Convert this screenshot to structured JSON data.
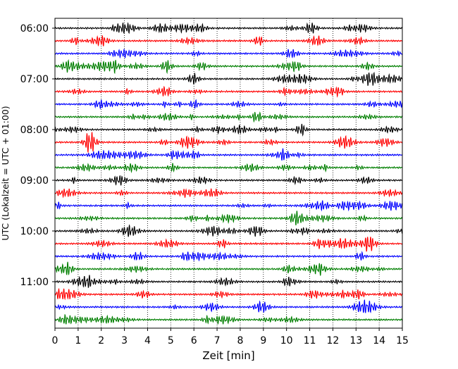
{
  "chart_data": {
    "type": "line",
    "title": "",
    "xlabel": "Zeit  [min]",
    "ylabel": "UTC (Lokalzeit = UTC + 01:00)",
    "xlim": [
      0,
      15
    ],
    "x_ticks": [
      0,
      1,
      2,
      3,
      4,
      5,
      6,
      7,
      8,
      9,
      10,
      11,
      12,
      13,
      14,
      15
    ],
    "y_tick_labels": [
      "06:00",
      "07:00",
      "08:00",
      "09:00",
      "10:00",
      "11:00"
    ],
    "traces_per_hour": 4,
    "trace_start_times": [
      "06:00",
      "06:15",
      "06:30",
      "06:45",
      "07:00",
      "07:15",
      "07:30",
      "07:45",
      "08:00",
      "08:15",
      "08:30",
      "08:45",
      "09:00",
      "09:15",
      "09:30",
      "09:45",
      "10:00",
      "10:15",
      "10:30",
      "10:45",
      "11:00",
      "11:15",
      "11:30",
      "11:45"
    ],
    "trace_colors": [
      "#000000",
      "#ff0000",
      "#0000ff",
      "#007f00"
    ],
    "grid": {
      "x": "dotted",
      "y": false
    },
    "legend": "none"
  }
}
